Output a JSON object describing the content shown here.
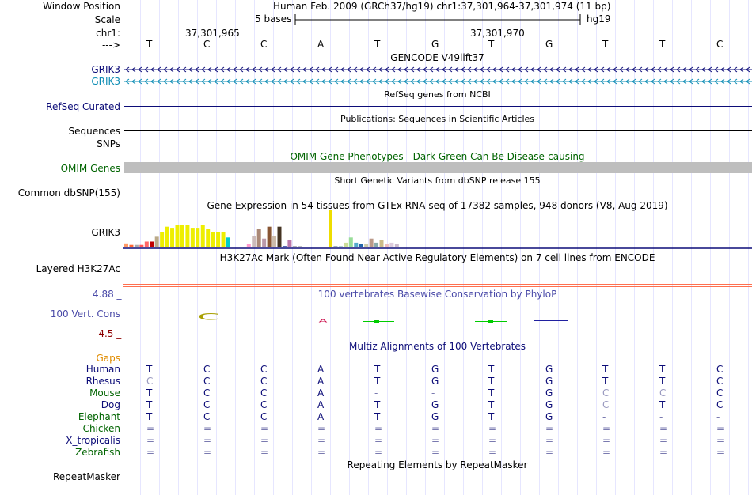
{
  "colors": {
    "label_black": "#000000",
    "label_navy": "#0c0c78",
    "label_teal": "#0c8cb4",
    "label_darkgreen": "#006400",
    "label_orange": "#e08c00",
    "label_red": "#8c0000",
    "track_slate": "#4a4aa8",
    "gridline": "#c8c8ff",
    "omim_bar": "#bebebe",
    "separator": "#ff7050",
    "left_border": "#d09090"
  },
  "header": {
    "window_position_label": "Window Position",
    "window_position_value": "Human Feb. 2009 (GRCh37/hg19)   chr1:37,301,964-37,301,974 (11 bp)",
    "scale_label": "Scale",
    "scale_value": "5 bases",
    "scale_assembly": "hg19",
    "chrom_label": "chr1:",
    "coord_1": "37,301,965",
    "coord_2": "37,301,970",
    "strand_label": "--->",
    "reference_bases": [
      "T",
      "C",
      "C",
      "A",
      "T",
      "G",
      "T",
      "G",
      "T",
      "T",
      "C"
    ]
  },
  "tracks": {
    "gencode": {
      "title": "GENCODE V49lift37",
      "gene_1": "GRIK3",
      "gene_2": "GRIK3"
    },
    "refseq": {
      "title": "RefSeq genes from NCBI",
      "label": "RefSeq Curated"
    },
    "publications": {
      "title": "Publications: Sequences in Scientific Articles",
      "label": "Sequences"
    },
    "snps": {
      "label": "SNPs"
    },
    "omim": {
      "title": "OMIM Gene Phenotypes - Dark Green Can Be Disease-causing",
      "label": "OMIM Genes"
    },
    "dbsnp": {
      "title": "Short Genetic Variants from dbSNP release 155",
      "label": "Common dbSNP(155)"
    },
    "gtex": {
      "title": "Gene Expression in 54 tissues from GTEx RNA-seq of 17382 samples, 948 donors (V8, Aug 2019)",
      "label": "GRIK3",
      "bars": [
        {
          "level": 0.11,
          "color": "#ff9966"
        },
        {
          "level": 0.07,
          "color": "#ff6633"
        },
        {
          "level": 0.07,
          "color": "#aaaaaa"
        },
        {
          "level": 0.07,
          "color": "#ff5555"
        },
        {
          "level": 0.16,
          "color": "#ff6666"
        },
        {
          "level": 0.16,
          "color": "#c00000"
        },
        {
          "level": 0.29,
          "color": "#bbaa88"
        },
        {
          "level": 0.42,
          "color": "#eeee00"
        },
        {
          "level": 0.56,
          "color": "#eeee00"
        },
        {
          "level": 0.53,
          "color": "#eeee00"
        },
        {
          "level": 0.6,
          "color": "#eeee00"
        },
        {
          "level": 0.6,
          "color": "#eeee00"
        },
        {
          "level": 0.6,
          "color": "#eeee00"
        },
        {
          "level": 0.53,
          "color": "#eeee00"
        },
        {
          "level": 0.53,
          "color": "#eeee00"
        },
        {
          "level": 0.6,
          "color": "#eeee00"
        },
        {
          "level": 0.49,
          "color": "#eeee00"
        },
        {
          "level": 0.42,
          "color": "#eeee00"
        },
        {
          "level": 0.42,
          "color": "#eeee00"
        },
        {
          "level": 0.42,
          "color": "#eeee00"
        },
        {
          "level": 0.27,
          "color": "#00cccc"
        },
        {
          "level": 0.0,
          "color": "#ffffff"
        },
        {
          "level": 0.0,
          "color": "#ffffff"
        },
        {
          "level": 0.0,
          "color": "#ffffff"
        },
        {
          "level": 0.09,
          "color": "#ff99cc"
        },
        {
          "level": 0.31,
          "color": "#ccbbbb"
        },
        {
          "level": 0.49,
          "color": "#aa8877"
        },
        {
          "level": 0.24,
          "color": "#bb99aa"
        },
        {
          "level": 0.56,
          "color": "#885533"
        },
        {
          "level": 0.31,
          "color": "#ccbbaa"
        },
        {
          "level": 0.56,
          "color": "#443322"
        },
        {
          "level": 0.04,
          "color": "#4455aa"
        },
        {
          "level": 0.2,
          "color": "#bb77aa"
        },
        {
          "level": 0.04,
          "color": "#aaaaaa"
        },
        {
          "level": 0.04,
          "color": "#bbbbbb"
        },
        {
          "level": 0.0,
          "color": "#ffffff"
        },
        {
          "level": 0.0,
          "color": "#ffffff"
        },
        {
          "level": 0.0,
          "color": "#ffffff"
        },
        {
          "level": 0.0,
          "color": "#ffffff"
        },
        {
          "level": 0.0,
          "color": "#ffffff"
        },
        {
          "level": 1.0,
          "color": "#eedd00"
        },
        {
          "level": 0.04,
          "color": "#99aaaa"
        },
        {
          "level": 0.04,
          "color": "#aacccc"
        },
        {
          "level": 0.13,
          "color": "#ccdd99"
        },
        {
          "level": 0.27,
          "color": "#99dd99"
        },
        {
          "level": 0.13,
          "color": "#55aacc"
        },
        {
          "level": 0.09,
          "color": "#2266aa"
        },
        {
          "level": 0.09,
          "color": "#ccccaa"
        },
        {
          "level": 0.24,
          "color": "#bb9988"
        },
        {
          "level": 0.13,
          "color": "#88aaaa"
        },
        {
          "level": 0.2,
          "color": "#ccbb88"
        },
        {
          "level": 0.09,
          "color": "#eebbbb"
        },
        {
          "level": 0.13,
          "color": "#ddccdd"
        },
        {
          "level": 0.09,
          "color": "#ccbbcc"
        }
      ]
    },
    "h3k27ac": {
      "title": "H3K27Ac Mark (Often Found Near Active Regulatory Elements) on 7 cell lines from ENCODE",
      "label": "Layered H3K27Ac"
    },
    "phylop": {
      "title": "100 vertebrates Basewise Conservation by PhyloP",
      "label": "100 Vert. Cons",
      "max_label": "4.88 _",
      "min_label": "-4.5 _"
    },
    "multiz": {
      "title": "Multiz Alignments of 100 Vertebrates",
      "gaps_label": "Gaps",
      "species": [
        {
          "name": "Human",
          "color": "#0c0c78",
          "bases": [
            "T",
            "C",
            "C",
            "A",
            "T",
            "G",
            "T",
            "G",
            "T",
            "T",
            "C"
          ]
        },
        {
          "name": "Rhesus",
          "color": "#0c0c78",
          "bases": [
            "C",
            "C",
            "C",
            "A",
            "T",
            "G",
            "T",
            "G",
            "T",
            "T",
            "C"
          ]
        },
        {
          "name": "Mouse",
          "color": "#006400",
          "bases": [
            "T",
            "C",
            "C",
            "A",
            "-",
            "-",
            "T",
            "G",
            "C",
            "C",
            "C"
          ]
        },
        {
          "name": "Dog",
          "color": "#0c0c78",
          "bases": [
            "T",
            "C",
            "C",
            "A",
            "T",
            "G",
            "T",
            "G",
            "C",
            "T",
            "C"
          ]
        },
        {
          "name": "Elephant",
          "color": "#006400",
          "bases": [
            "T",
            "C",
            "C",
            "A",
            "T",
            "G",
            "T",
            "G",
            "-",
            "-",
            "-"
          ]
        },
        {
          "name": "Chicken",
          "color": "#006400",
          "bases": [
            "=",
            "=",
            "=",
            "=",
            "=",
            "=",
            "=",
            "=",
            "=",
            "=",
            "="
          ]
        },
        {
          "name": "X_tropicalis",
          "color": "#0c0c78",
          "bases": [
            "=",
            "=",
            "=",
            "=",
            "=",
            "=",
            "=",
            "=",
            "=",
            "=",
            "="
          ]
        },
        {
          "name": "Zebrafish",
          "color": "#006400",
          "bases": [
            "=",
            "=",
            "=",
            "=",
            "=",
            "=",
            "=",
            "=",
            "=",
            "=",
            "="
          ]
        }
      ]
    },
    "repeatmasker": {
      "title": "Repeating Elements by RepeatMasker",
      "label": "RepeatMasker"
    }
  }
}
